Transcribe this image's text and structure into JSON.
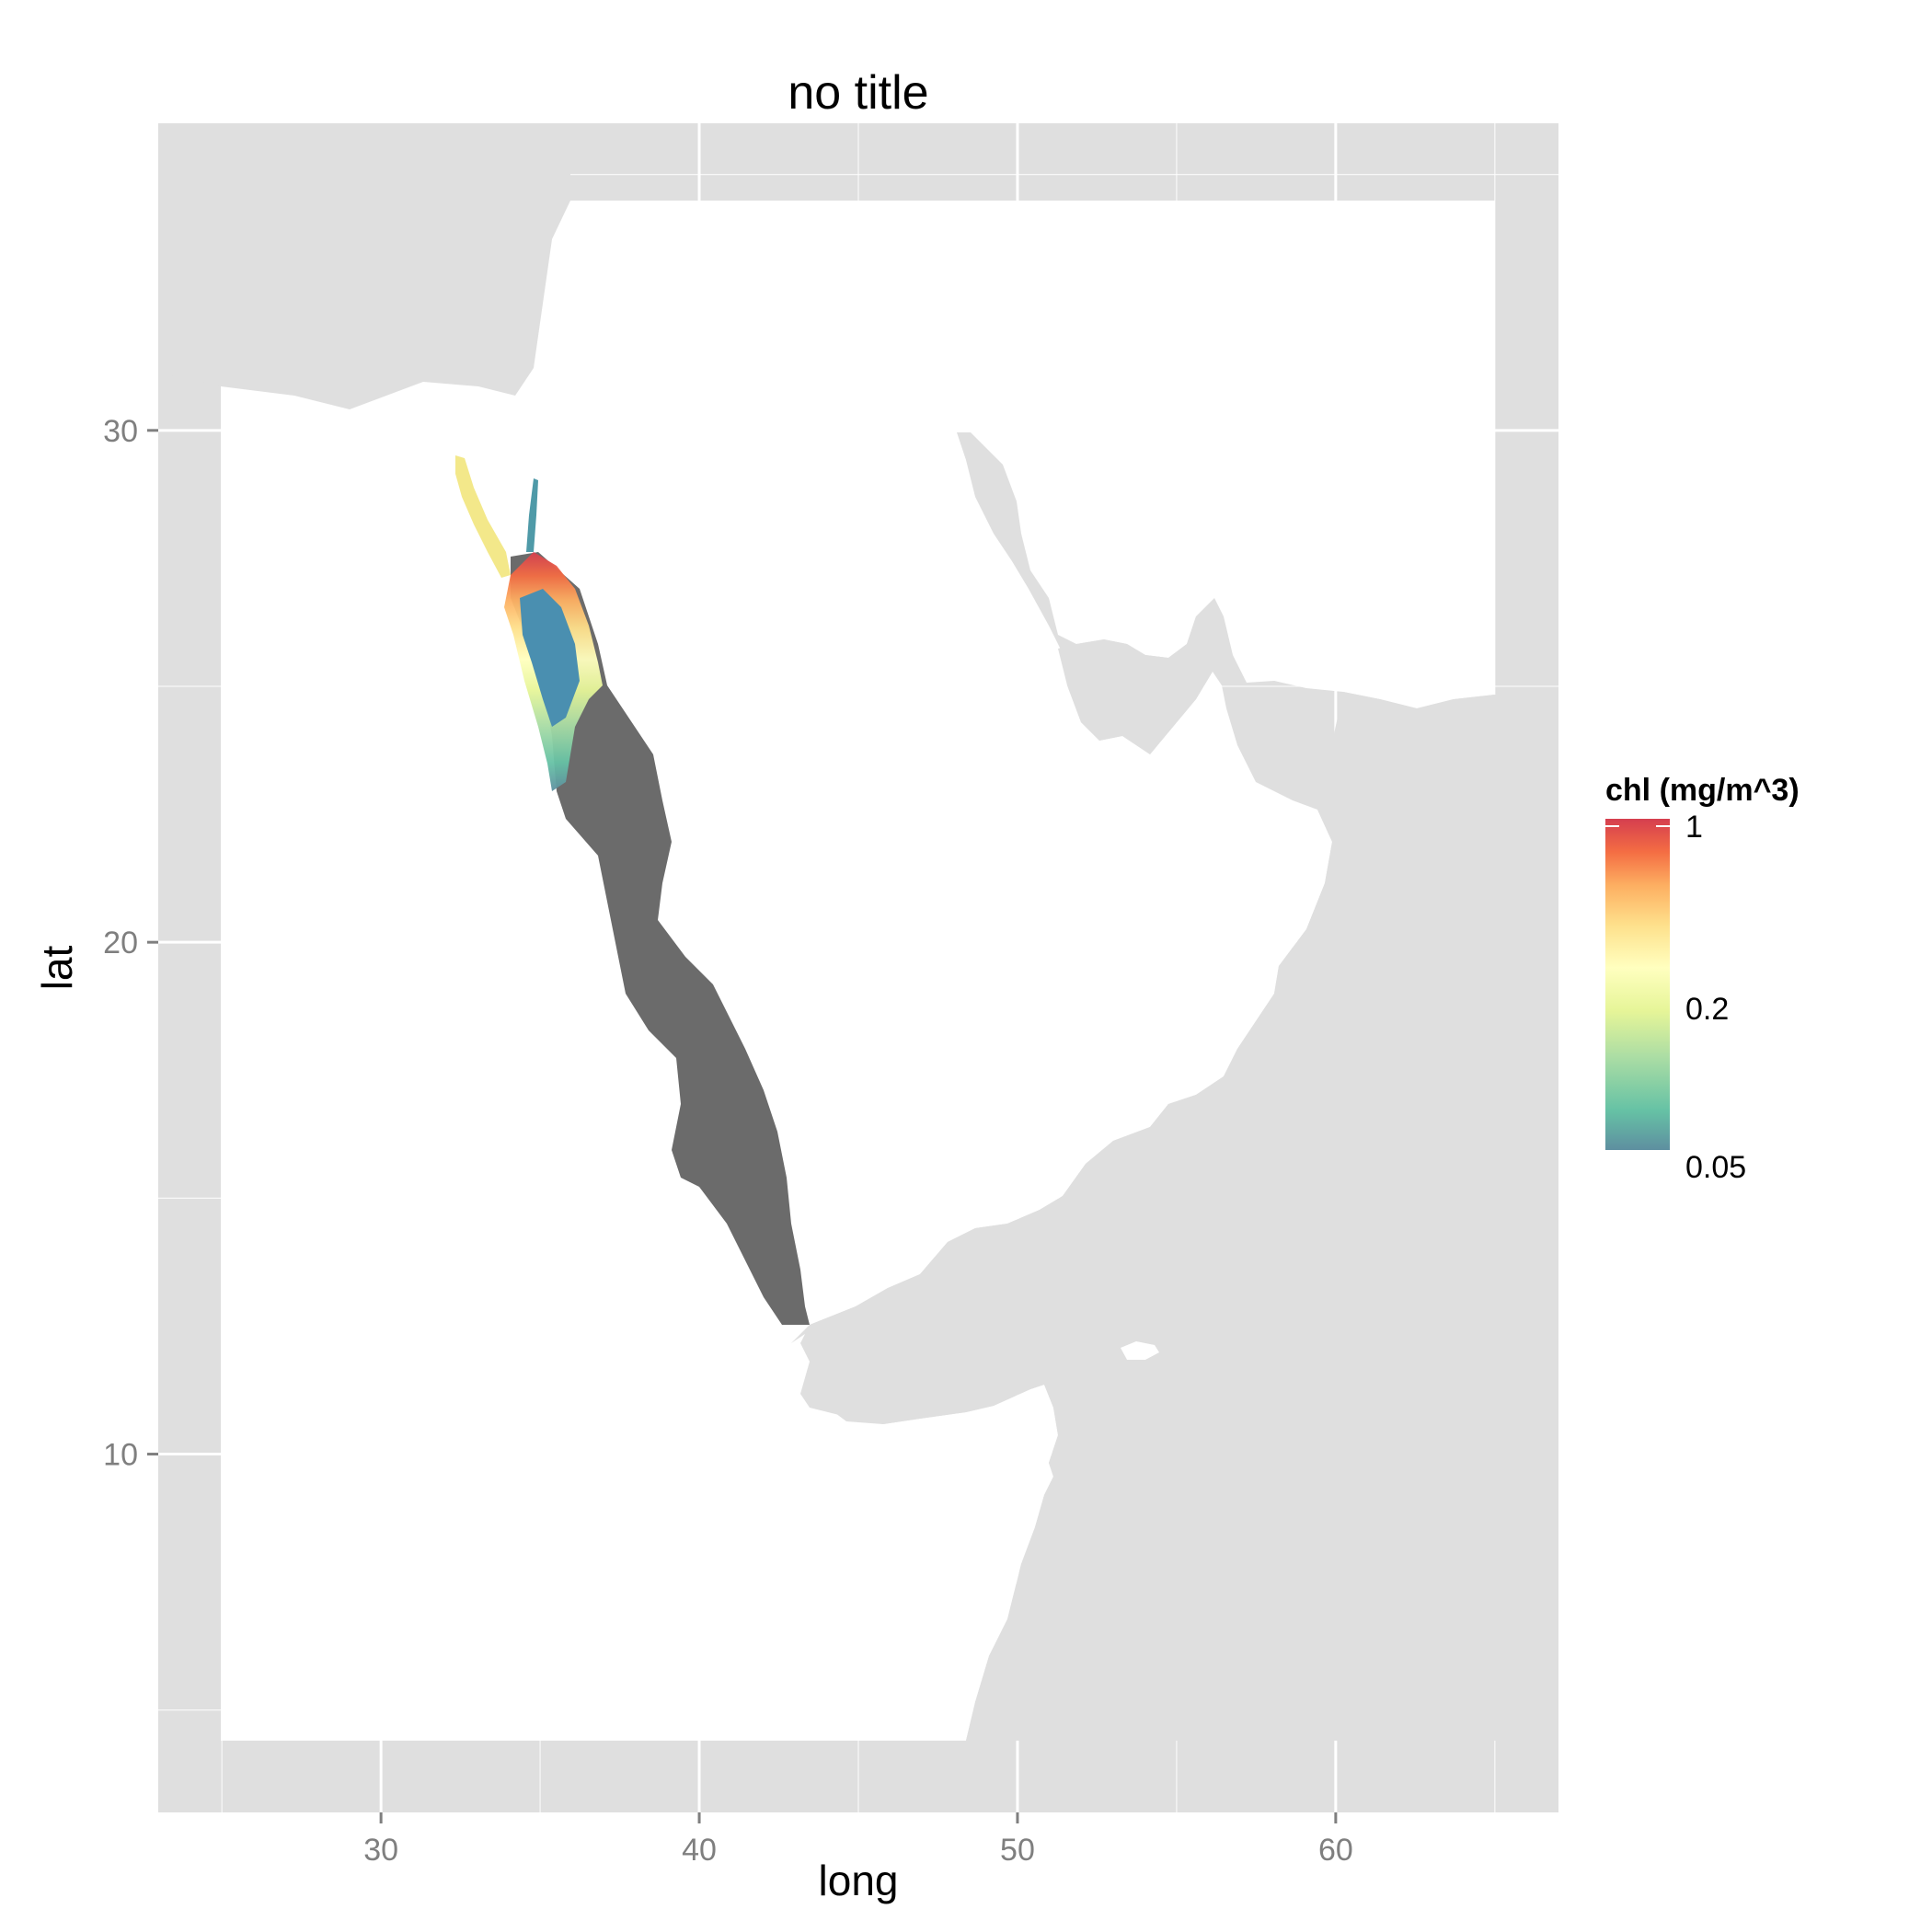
{
  "chart_data": {
    "type": "map",
    "title": "no title",
    "xlabel": "long",
    "ylabel": "lat",
    "xlim": [
      23,
      67
    ],
    "ylim": [
      3,
      36
    ],
    "xticks": [
      30,
      40,
      50,
      60
    ],
    "yticks": [
      10,
      20,
      30
    ],
    "grid": true,
    "colors": {
      "panel_bg": "#dfdfdf",
      "land": "#ffffff",
      "sea_no_data": "#6b6b6b",
      "grid": "#ffffff"
    },
    "legend": {
      "title": "chl (mg/m^3)",
      "placement": "right",
      "scale": "log",
      "labels": [
        "1",
        "0.2",
        "0.05"
      ],
      "values": [
        1,
        0.2,
        0.05
      ],
      "colors": [
        "#d53e4f",
        "#f46d43",
        "#fdae61",
        "#fee08b",
        "#ffffbf",
        "#e6f598",
        "#abdda4",
        "#66c2a5",
        "#5e8fa0"
      ]
    }
  }
}
